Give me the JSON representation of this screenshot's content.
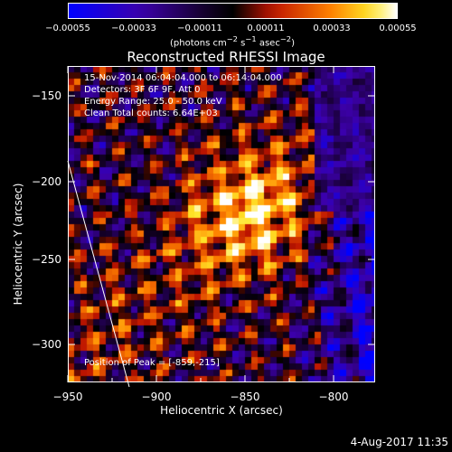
{
  "colorbar": {
    "ticks": [
      "−0.00055",
      "−0.00033",
      "−0.00011",
      "0.00011",
      "0.00033",
      "0.00055"
    ],
    "units_main": "(photons cm",
    "units_exp1": "−2",
    "units_mid": " s",
    "units_exp2": "−1",
    "units_mid2": " asec",
    "units_exp3": "−2",
    "units_end": ")"
  },
  "title": "Reconstructed RHESSI Image",
  "info": {
    "time_range": "15-Nov-2014 06:04:04.000 to 06:14:04.000",
    "detectors": "Detectors: 3F 6F 9F, Att 0",
    "energy": "Energy Range: 25.0 - 50.0 keV",
    "clean": "Clean     Total counts: 6.64E+03"
  },
  "peak": "Position of Peak = [-859,-215]",
  "axes": {
    "xlabel": "Heliocentric X (arcsec)",
    "ylabel": "Heliocentric Y (arcsec)",
    "xticks": [
      "−950",
      "−900",
      "−850",
      "−800"
    ],
    "yticks": [
      "−150",
      "−200",
      "−250",
      "−300"
    ]
  },
  "datestamp": "4-Aug-2017 11:35",
  "colors": {
    "map_low": "#1a1060",
    "map_high": "#ffff90"
  }
}
